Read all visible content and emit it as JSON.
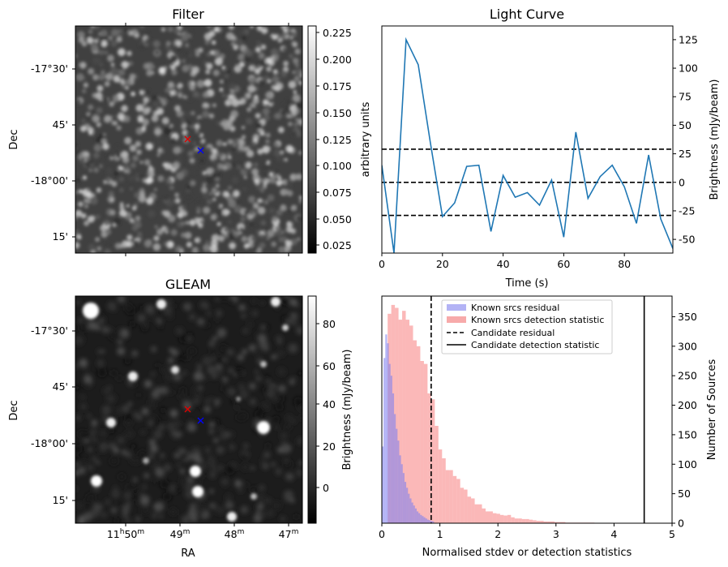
{
  "colors": {
    "line": "#1f77b4",
    "hist_residual": "#b3b3f5",
    "hist_detection": "#f7aaaa",
    "marker_red": "#e00000",
    "marker_blue": "#0000ff"
  },
  "panels": {
    "filter": {
      "title": "Filter",
      "ylabel": "Dec",
      "yticks": [
        "-17°30'",
        "45'",
        "-18°00'",
        "15'"
      ],
      "colorbar_label": "arbitrary units",
      "colorbar_ticks": [
        "0.225",
        "0.200",
        "0.175",
        "0.150",
        "0.125",
        "0.100",
        "0.075",
        "0.050",
        "0.025"
      ]
    },
    "gleam": {
      "title": "GLEAM",
      "ylabel": "Dec",
      "xlabel": "RA",
      "yticks": [
        "-17°30'",
        "45'",
        "-18°00'",
        "15'"
      ],
      "xticks": [
        {
          "main": "11",
          "h": "h",
          "mm": "50",
          "m": "m"
        },
        {
          "main": "49",
          "h": "",
          "mm": "",
          "m": "m"
        },
        {
          "main": "48",
          "h": "",
          "mm": "",
          "m": "m"
        },
        {
          "main": "47",
          "h": "",
          "mm": "",
          "m": "m"
        }
      ],
      "colorbar_label": "Brightness (mJy/beam)",
      "colorbar_ticks": [
        "80",
        "60",
        "40",
        "20",
        "0"
      ]
    }
  },
  "chart_data": [
    {
      "type": "line",
      "title": "Light Curve",
      "xlabel": "Time (s)",
      "ylabel": "Brightness (mJy/beam)",
      "xlim": [
        0,
        96
      ],
      "ylim": [
        -62,
        137
      ],
      "xticks": [
        0,
        20,
        40,
        60,
        80
      ],
      "yticks": [
        125,
        100,
        75,
        50,
        25,
        0,
        -25,
        -50
      ],
      "x": [
        0,
        4,
        8,
        12,
        16,
        20,
        24,
        28,
        32,
        36,
        40,
        44,
        48,
        52,
        56,
        60,
        64,
        68,
        72,
        76,
        80,
        84,
        88,
        92,
        96
      ],
      "values": [
        15,
        -62,
        125,
        103,
        35,
        -30,
        -18,
        14,
        15,
        -43,
        6,
        -13,
        -9,
        -20,
        2,
        -48,
        44,
        -14,
        5,
        15,
        -4,
        -36,
        24,
        -32,
        -58
      ],
      "hlines": [
        {
          "y": 29,
          "style": "dashed"
        },
        {
          "y": 0,
          "style": "dashed"
        },
        {
          "y": -29,
          "style": "dashed"
        }
      ]
    },
    {
      "type": "bar",
      "xlabel": "Normalised stdev or detection statistics",
      "ylabel": "Number of Sources",
      "xlim": [
        0,
        5
      ],
      "ylim": [
        0,
        385
      ],
      "xticks": [
        0,
        1,
        2,
        3,
        4,
        5
      ],
      "yticks": [
        0,
        50,
        100,
        150,
        200,
        250,
        300,
        350
      ],
      "series": [
        {
          "name": "Known srcs residual",
          "bin_start": 0,
          "bin_width": 0.03,
          "values": [
            130,
            280,
            320,
            305,
            270,
            250,
            220,
            185,
            160,
            140,
            115,
            100,
            85,
            70,
            60,
            50,
            42,
            35,
            30,
            25,
            20,
            17,
            14,
            12,
            10,
            8,
            6,
            5,
            4,
            3
          ]
        },
        {
          "name": "Known srcs detection statistic",
          "bin_start": 0.1,
          "bin_width": 0.0625,
          "values": [
            355,
            370,
            365,
            345,
            360,
            345,
            335,
            310,
            300,
            275,
            270,
            220,
            210,
            165,
            125,
            110,
            90,
            90,
            80,
            75,
            60,
            57,
            45,
            42,
            32,
            32,
            25,
            20,
            20,
            17,
            16,
            14,
            13,
            14,
            10,
            8,
            8,
            7,
            7,
            6,
            5,
            4,
            4,
            3,
            3,
            3,
            2,
            2,
            2,
            1,
            1,
            1,
            1,
            1,
            1,
            1,
            1
          ]
        }
      ],
      "vlines": [
        {
          "name": "Candidate residual",
          "x": 0.85,
          "style": "dashed"
        },
        {
          "name": "Candidate detection statistic",
          "x": 4.52,
          "style": "solid"
        }
      ]
    }
  ]
}
